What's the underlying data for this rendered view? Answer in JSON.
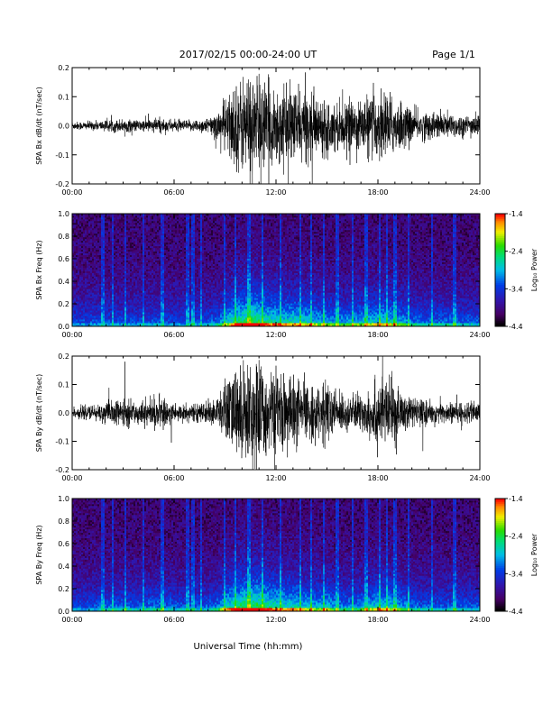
{
  "header": {
    "title": "2017/02/15  00:00-24:00 UT",
    "page": "Page 1/1"
  },
  "xlabel": "Universal Time (hh:mm)",
  "chart_data": [
    {
      "type": "line",
      "ylabel": "SPA Bx dB/dt (nT/sec)",
      "xlim": [
        0,
        24
      ],
      "ylim": [
        -0.2,
        0.2
      ],
      "x_ticks": [
        "00:00",
        "06:00",
        "12:00",
        "18:00",
        "24:00"
      ],
      "y_ticks": [
        "-0.2",
        "-0.1",
        "0.0",
        "0.1",
        "0.2"
      ],
      "envelope": {
        "hours": [
          0,
          1,
          2,
          3,
          4,
          5,
          6,
          7,
          8,
          8.5,
          9,
          9.5,
          10,
          10.5,
          11,
          11.5,
          12,
          12.5,
          13,
          13.5,
          14,
          14.5,
          15,
          15.5,
          16,
          16.5,
          17,
          17.5,
          18,
          18.5,
          19,
          19.5,
          20,
          21,
          22,
          23,
          24
        ],
        "amplitude": [
          0.015,
          0.015,
          0.02,
          0.025,
          0.02,
          0.03,
          0.02,
          0.02,
          0.03,
          0.05,
          0.1,
          0.15,
          0.17,
          0.2,
          0.18,
          0.15,
          0.15,
          0.13,
          0.14,
          0.13,
          0.12,
          0.1,
          0.1,
          0.09,
          0.08,
          0.09,
          0.1,
          0.11,
          0.12,
          0.13,
          0.1,
          0.09,
          0.06,
          0.05,
          0.05,
          0.04,
          0.04
        ]
      }
    },
    {
      "type": "heatmap",
      "ylabel": "SPA Bx Freq (Hz)",
      "xlim": [
        0,
        24
      ],
      "ylim": [
        0,
        1.0
      ],
      "x_ticks": [
        "00:00",
        "06:00",
        "12:00",
        "18:00",
        "24:00"
      ],
      "y_ticks": [
        "0.0",
        "0.2",
        "0.4",
        "0.6",
        "0.8",
        "1.0"
      ],
      "colorbar": {
        "label": "Log₁₀ Power",
        "range": [
          -4.4,
          -1.4
        ],
        "ticks": [
          "-1.4",
          "-2.4",
          "-3.4",
          "-4.4"
        ]
      }
    },
    {
      "type": "line",
      "ylabel": "SPA By dB/dt (nT/sec)",
      "xlim": [
        0,
        24
      ],
      "ylim": [
        -0.2,
        0.2
      ],
      "x_ticks": [
        "00:00",
        "06:00",
        "12:00",
        "18:00",
        "24:00"
      ],
      "y_ticks": [
        "-0.2",
        "-0.1",
        "0.0",
        "0.1",
        "0.2"
      ],
      "envelope": {
        "hours": [
          0,
          1,
          2,
          3,
          4,
          5,
          6,
          7,
          8,
          8.5,
          9,
          9.5,
          10,
          10.5,
          11,
          11.5,
          12,
          12.5,
          13,
          13.5,
          14,
          14.5,
          15,
          15.5,
          16,
          16.5,
          17,
          17.5,
          18,
          18.5,
          19,
          19.5,
          20,
          21,
          22,
          23,
          24
        ],
        "amplitude": [
          0.02,
          0.025,
          0.04,
          0.05,
          0.04,
          0.06,
          0.04,
          0.03,
          0.04,
          0.06,
          0.12,
          0.16,
          0.18,
          0.2,
          0.2,
          0.16,
          0.15,
          0.14,
          0.14,
          0.12,
          0.1,
          0.1,
          0.12,
          0.08,
          0.07,
          0.06,
          0.08,
          0.1,
          0.13,
          0.13,
          0.1,
          0.08,
          0.06,
          0.04,
          0.04,
          0.04,
          0.04
        ]
      }
    },
    {
      "type": "heatmap",
      "ylabel": "SPA By Freq (Hz)",
      "xlim": [
        0,
        24
      ],
      "ylim": [
        0,
        1.0
      ],
      "x_ticks": [
        "00:00",
        "06:00",
        "12:00",
        "18:00",
        "24:00"
      ],
      "y_ticks": [
        "0.0",
        "0.2",
        "0.4",
        "0.6",
        "0.8",
        "1.0"
      ],
      "colorbar": {
        "label": "Log₁₀ Power",
        "range": [
          -4.4,
          -1.4
        ],
        "ticks": [
          "-1.4",
          "-2.4",
          "-3.4",
          "-4.4"
        ]
      }
    }
  ]
}
